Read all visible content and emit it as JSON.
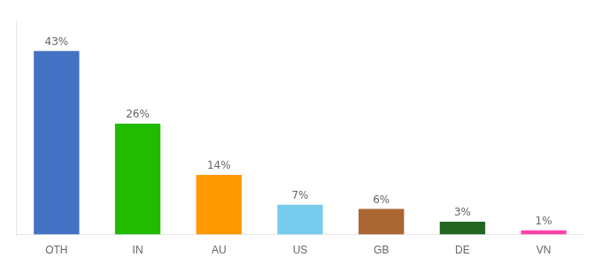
{
  "chart_data": {
    "type": "bar",
    "categories": [
      "OTH",
      "IN",
      "AU",
      "US",
      "GB",
      "DE",
      "VN"
    ],
    "values": [
      43,
      26,
      14,
      7,
      6,
      3,
      1
    ],
    "value_labels": [
      "43%",
      "26%",
      "14%",
      "7%",
      "6%",
      "3%",
      "1%"
    ],
    "data_labels": true,
    "colors": [
      "#4472C4",
      "#22BB00",
      "#FF9900",
      "#77CCEE",
      "#AA6633",
      "#226622",
      "#FF44AA"
    ],
    "ylim": [
      0,
      50
    ],
    "grid": false,
    "tick_labels": "x"
  }
}
